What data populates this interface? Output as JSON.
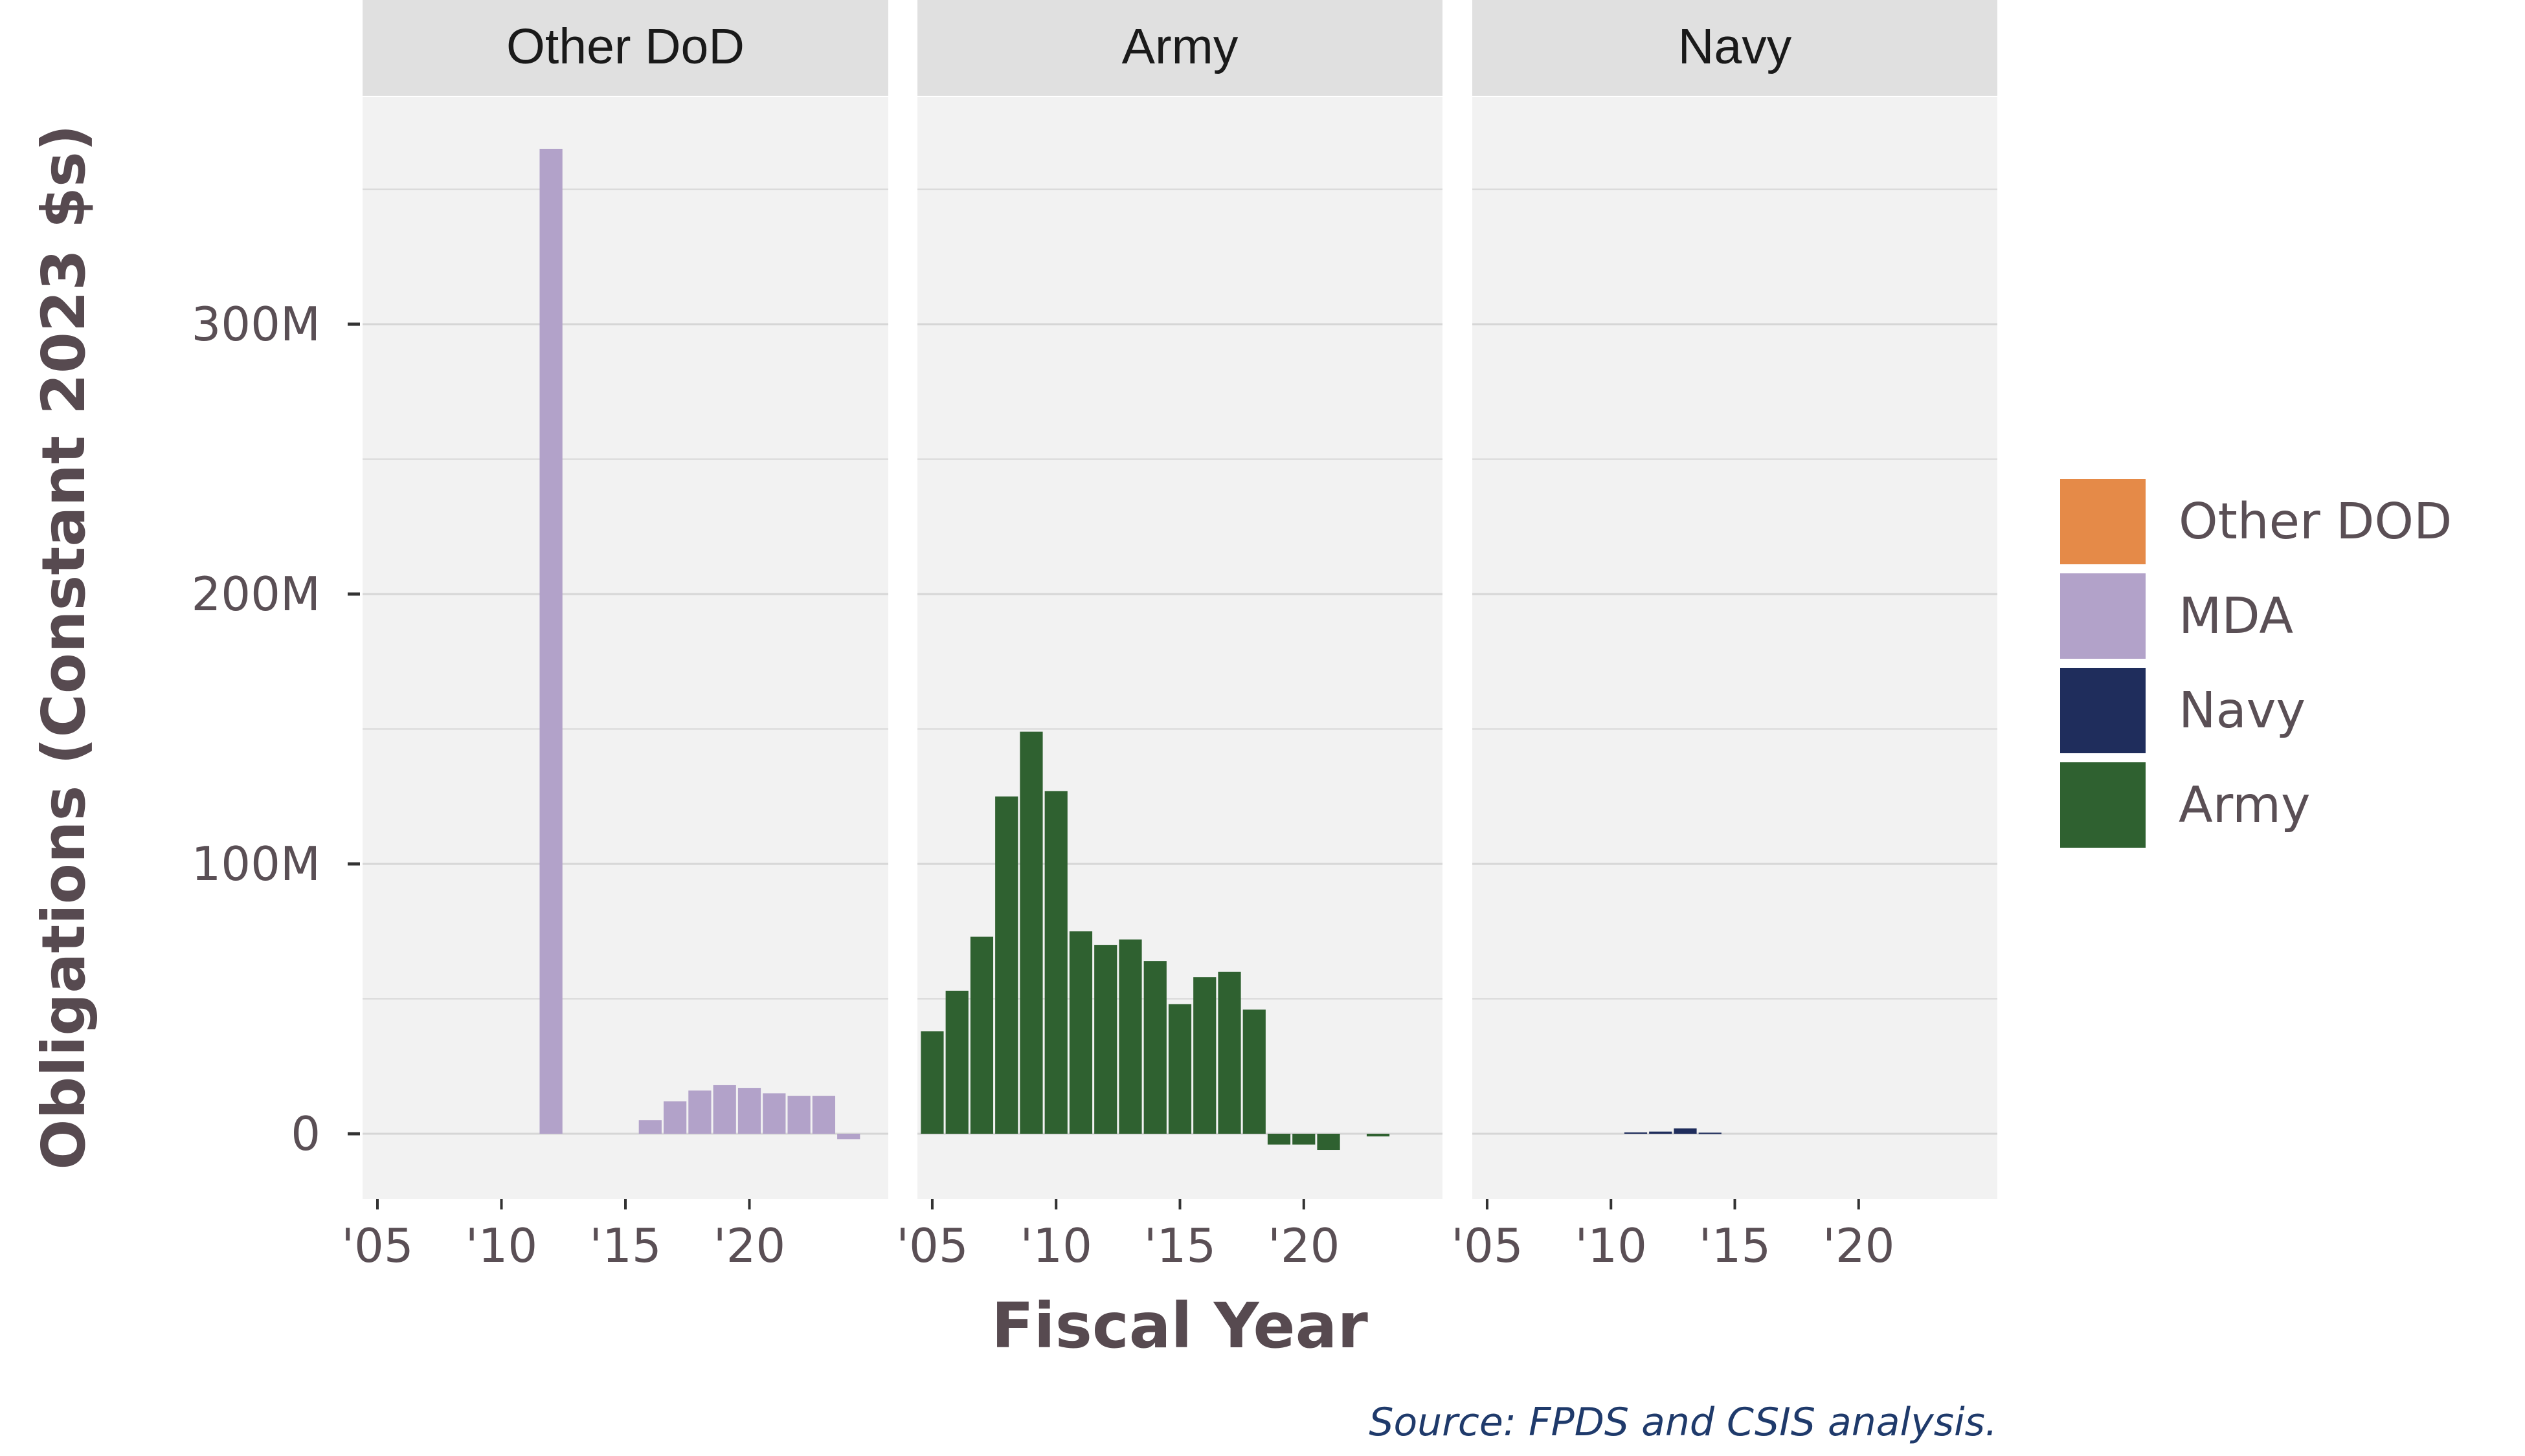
{
  "chart_data": {
    "type": "bar",
    "ylabel": "Obligations (Constant 2023 $s)",
    "xlabel": "Fiscal Year",
    "source": "Source: FPDS and CSIS analysis.",
    "ylim": [
      -25000000,
      380000000
    ],
    "yticks": [
      0,
      100000000,
      200000000,
      300000000
    ],
    "ytick_labels": [
      "0",
      "100M",
      "200M",
      "300M"
    ],
    "xlim": [
      2004.4,
      2025.6
    ],
    "xticks": [
      2005,
      2010,
      2015,
      2020
    ],
    "xtick_labels": [
      "'05",
      "'10",
      "'15",
      "'20"
    ],
    "grid": true,
    "legend_position": "right",
    "legend": [
      {
        "name": "Other DOD",
        "color": "#E58A48"
      },
      {
        "name": "MDA",
        "color": "#B2A2C9"
      },
      {
        "name": "Navy",
        "color": "#1F2D5C"
      },
      {
        "name": "Army",
        "color": "#2F6130"
      }
    ],
    "facets": [
      {
        "title": "Other DoD",
        "series": [
          {
            "name": "MDA",
            "color": "#B2A2C9",
            "points": [
              {
                "x": 2012,
                "y": 365000000
              },
              {
                "x": 2016,
                "y": 5000000
              },
              {
                "x": 2017,
                "y": 12000000
              },
              {
                "x": 2018,
                "y": 16000000
              },
              {
                "x": 2019,
                "y": 18000000
              },
              {
                "x": 2020,
                "y": 17000000
              },
              {
                "x": 2021,
                "y": 15000000
              },
              {
                "x": 2022,
                "y": 14000000
              },
              {
                "x": 2023,
                "y": 14000000
              },
              {
                "x": 2024,
                "y": -2000000
              }
            ]
          }
        ]
      },
      {
        "title": "Army",
        "series": [
          {
            "name": "Army",
            "color": "#2F6130",
            "points": [
              {
                "x": 2005,
                "y": 38000000
              },
              {
                "x": 2006,
                "y": 53000000
              },
              {
                "x": 2007,
                "y": 73000000
              },
              {
                "x": 2008,
                "y": 125000000
              },
              {
                "x": 2009,
                "y": 149000000
              },
              {
                "x": 2010,
                "y": 127000000
              },
              {
                "x": 2011,
                "y": 75000000
              },
              {
                "x": 2012,
                "y": 70000000
              },
              {
                "x": 2013,
                "y": 72000000
              },
              {
                "x": 2014,
                "y": 64000000
              },
              {
                "x": 2015,
                "y": 48000000
              },
              {
                "x": 2016,
                "y": 58000000
              },
              {
                "x": 2017,
                "y": 60000000
              },
              {
                "x": 2018,
                "y": 46000000
              },
              {
                "x": 2019,
                "y": -4000000
              },
              {
                "x": 2020,
                "y": -4000000
              },
              {
                "x": 2021,
                "y": -6000000
              },
              {
                "x": 2023,
                "y": -1000000
              }
            ]
          }
        ]
      },
      {
        "title": "Navy",
        "series": [
          {
            "name": "Navy",
            "color": "#1F2D5C",
            "points": [
              {
                "x": 2011,
                "y": 500000
              },
              {
                "x": 2012,
                "y": 800000
              },
              {
                "x": 2013,
                "y": 2000000
              },
              {
                "x": 2014,
                "y": 400000
              }
            ]
          }
        ]
      }
    ]
  }
}
